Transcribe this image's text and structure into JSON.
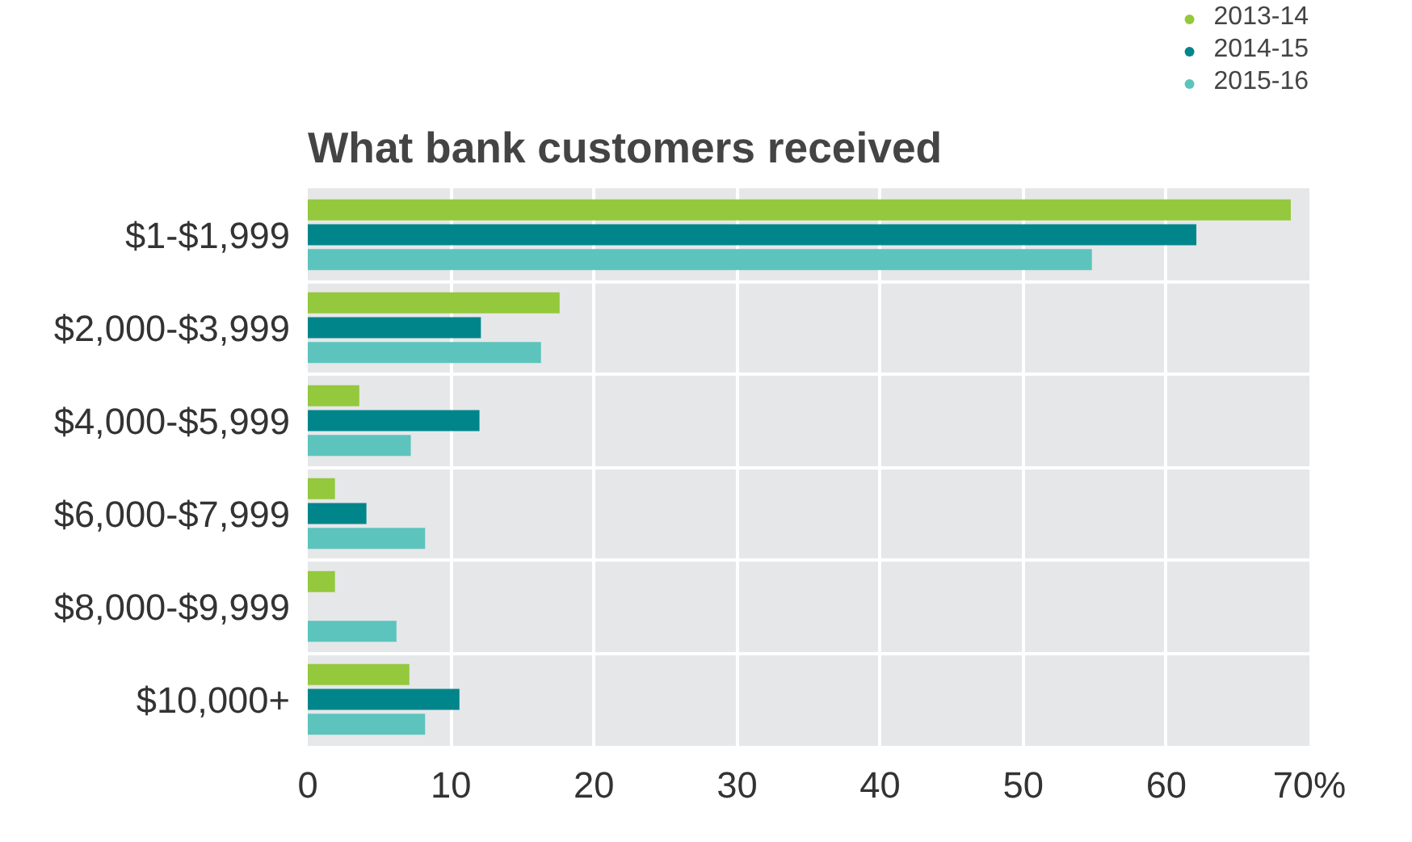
{
  "chart_data": {
    "type": "bar",
    "orientation": "horizontal",
    "title": "What bank customers received",
    "categories": [
      "$1-$1,999",
      "$2,000-$3,999",
      "$4,000-$5,999",
      "$6,000-$7,999",
      "$8,000-$9,999",
      "$10,000+"
    ],
    "series": [
      {
        "name": "2013-14",
        "color": "#94c83d",
        "values": [
          68.7,
          17.6,
          3.6,
          1.9,
          1.9,
          7.1
        ]
      },
      {
        "name": "2014-15",
        "color": "#00868a",
        "values": [
          62.1,
          12.1,
          12.0,
          4.1,
          null,
          10.6
        ]
      },
      {
        "name": "2015-16",
        "color": "#5cc4bd",
        "values": [
          54.8,
          16.3,
          7.2,
          8.2,
          6.2,
          8.2
        ]
      }
    ],
    "xlim": [
      0,
      70
    ],
    "xticks": [
      0,
      10,
      20,
      30,
      40,
      50,
      60,
      {
        "value": 70,
        "label": "70%"
      }
    ],
    "grid": "x",
    "legend": "top right"
  }
}
